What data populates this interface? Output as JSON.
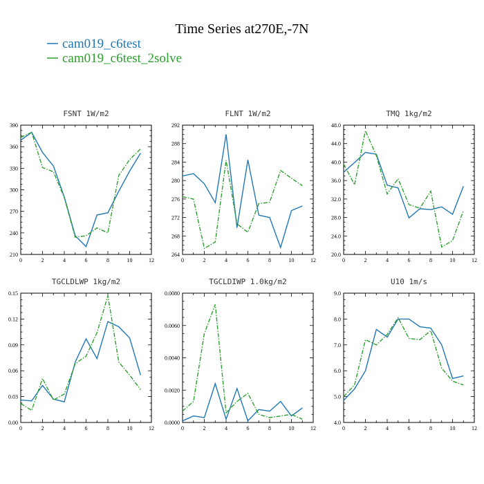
{
  "title": "Time Series at270E,-7N",
  "legend": [
    {
      "label": "cam019_c6test",
      "color": "#1f77b4",
      "dash": "solid"
    },
    {
      "label": "cam019_c6test_2solve",
      "color": "#2ca02c",
      "dash": "dashdot"
    }
  ],
  "chart_data": [
    {
      "type": "line",
      "title": "FSNT   1W/m2",
      "x": [
        0,
        1,
        2,
        3,
        4,
        5,
        6,
        7,
        8,
        9,
        10,
        11
      ],
      "xlim": [
        0,
        12
      ],
      "xticks": [
        "0",
        "2",
        "4",
        "6",
        "8",
        "10",
        "12"
      ],
      "ylim": [
        210,
        390
      ],
      "yticks": [
        "210",
        "240",
        "270",
        "300",
        "330",
        "360",
        "390"
      ],
      "series": [
        {
          "name": "cam019_c6test",
          "values": [
            369,
            380,
            352,
            333,
            290,
            236,
            221,
            265,
            268,
            298,
            326,
            351
          ]
        },
        {
          "name": "cam019_c6test_2solve",
          "values": [
            373,
            380,
            331,
            325,
            289,
            234,
            236,
            247,
            240,
            320,
            342,
            357
          ]
        }
      ]
    },
    {
      "type": "line",
      "title": "FLNT   1W/m2",
      "x": [
        0,
        1,
        2,
        3,
        4,
        5,
        6,
        7,
        8,
        9,
        10,
        11
      ],
      "xlim": [
        0,
        12
      ],
      "xticks": [
        "0",
        "2",
        "4",
        "6",
        "8",
        "10",
        "12"
      ],
      "ylim": [
        264,
        292
      ],
      "yticks": [
        "264",
        "268",
        "272",
        "276",
        "280",
        "284",
        "288",
        "292"
      ],
      "series": [
        {
          "name": "cam019_c6test",
          "values": [
            281.0,
            281.5,
            279.3,
            275.2,
            290.0,
            269.8,
            284.5,
            272.5,
            272.0,
            265.5,
            273.5,
            274.5
          ]
        },
        {
          "name": "cam019_c6test_2solve",
          "values": [
            276.5,
            276.0,
            265.3,
            266.7,
            284.4,
            270.6,
            268.8,
            275.0,
            275.3,
            282.2,
            280.5,
            278.9
          ]
        }
      ]
    },
    {
      "type": "line",
      "title": "TMQ   1kg/m2",
      "x": [
        0,
        1,
        2,
        3,
        4,
        5,
        6,
        7,
        8,
        9,
        10,
        11
      ],
      "xlim": [
        0,
        12
      ],
      "xticks": [
        "0",
        "2",
        "4",
        "6",
        "8",
        "10",
        "12"
      ],
      "ylim": [
        20.0,
        48.0
      ],
      "yticks": [
        "20.0",
        "24.0",
        "28.0",
        "32.0",
        "36.0",
        "40.0",
        "44.0",
        "48.0"
      ],
      "series": [
        {
          "name": "cam019_c6test",
          "values": [
            37.8,
            39.9,
            42.1,
            41.7,
            35.0,
            34.4,
            27.9,
            29.9,
            29.7,
            30.3,
            28.7,
            34.8
          ]
        },
        {
          "name": "cam019_c6test_2solve",
          "values": [
            39.6,
            35.1,
            46.8,
            41.4,
            33.1,
            36.4,
            30.8,
            30.0,
            33.7,
            21.6,
            23.0,
            29.5
          ]
        }
      ]
    },
    {
      "type": "line",
      "title": "TGCLDLWP   1kg/m2",
      "x": [
        0,
        1,
        2,
        3,
        4,
        5,
        6,
        7,
        8,
        9,
        10,
        11
      ],
      "xlim": [
        0,
        12
      ],
      "xticks": [
        "0",
        "2",
        "4",
        "6",
        "8",
        "10",
        "12"
      ],
      "ylim": [
        0.0,
        0.15
      ],
      "yticks": [
        "0.00",
        "0.03",
        "0.06",
        "0.09",
        "0.12",
        "0.15"
      ],
      "series": [
        {
          "name": "cam019_c6test",
          "values": [
            0.026,
            0.025,
            0.043,
            0.027,
            0.024,
            0.07,
            0.097,
            0.074,
            0.117,
            0.111,
            0.098,
            0.055
          ]
        },
        {
          "name": "cam019_c6test_2solve",
          "values": [
            0.022,
            0.014,
            0.051,
            0.026,
            0.033,
            0.068,
            0.077,
            0.104,
            0.147,
            0.07,
            0.055,
            0.038
          ]
        }
      ]
    },
    {
      "type": "line",
      "title": "TGCLDIWP   1.0kg/m2",
      "x": [
        0,
        1,
        2,
        3,
        4,
        5,
        6,
        7,
        8,
        9,
        10,
        11
      ],
      "xlim": [
        0,
        12
      ],
      "xticks": [
        "0",
        "2",
        "4",
        "6",
        "8",
        "10",
        "12"
      ],
      "ylim": [
        0.0,
        0.008
      ],
      "yticks": [
        "0.0000",
        "0.0020",
        "0.0040",
        "0.0060",
        "0.0080"
      ],
      "series": [
        {
          "name": "cam019_c6test",
          "values": [
            0.0001,
            0.0004,
            0.0003,
            0.0024,
            0.0002,
            0.0021,
            0.0001,
            0.0008,
            0.0007,
            0.0013,
            0.0004,
            0.0009
          ]
        },
        {
          "name": "cam019_c6test_2solve",
          "values": [
            0.0007,
            0.0013,
            0.0055,
            0.0073,
            0.0006,
            0.0013,
            0.0018,
            0.0005,
            0.0003,
            0.0004,
            0.0005,
            0.0002
          ]
        }
      ]
    },
    {
      "type": "line",
      "title": "U10   1m/s",
      "x": [
        0,
        1,
        2,
        3,
        4,
        5,
        6,
        7,
        8,
        9,
        10,
        11
      ],
      "xlim": [
        0,
        12
      ],
      "xticks": [
        "0",
        "2",
        "4",
        "6",
        "8",
        "10",
        "12"
      ],
      "ylim": [
        4.0,
        9.0
      ],
      "yticks": [
        "4.0",
        "5.0",
        "6.0",
        "7.0",
        "8.0",
        "9.0"
      ],
      "series": [
        {
          "name": "cam019_c6test",
          "values": [
            4.85,
            5.3,
            6.0,
            7.6,
            7.3,
            8.0,
            8.0,
            7.7,
            7.65,
            7.0,
            5.7,
            5.8
          ]
        },
        {
          "name": "cam019_c6test_2solve",
          "values": [
            5.0,
            5.45,
            7.2,
            7.0,
            7.4,
            8.05,
            7.25,
            7.2,
            7.55,
            6.1,
            5.6,
            5.45
          ]
        }
      ]
    }
  ]
}
